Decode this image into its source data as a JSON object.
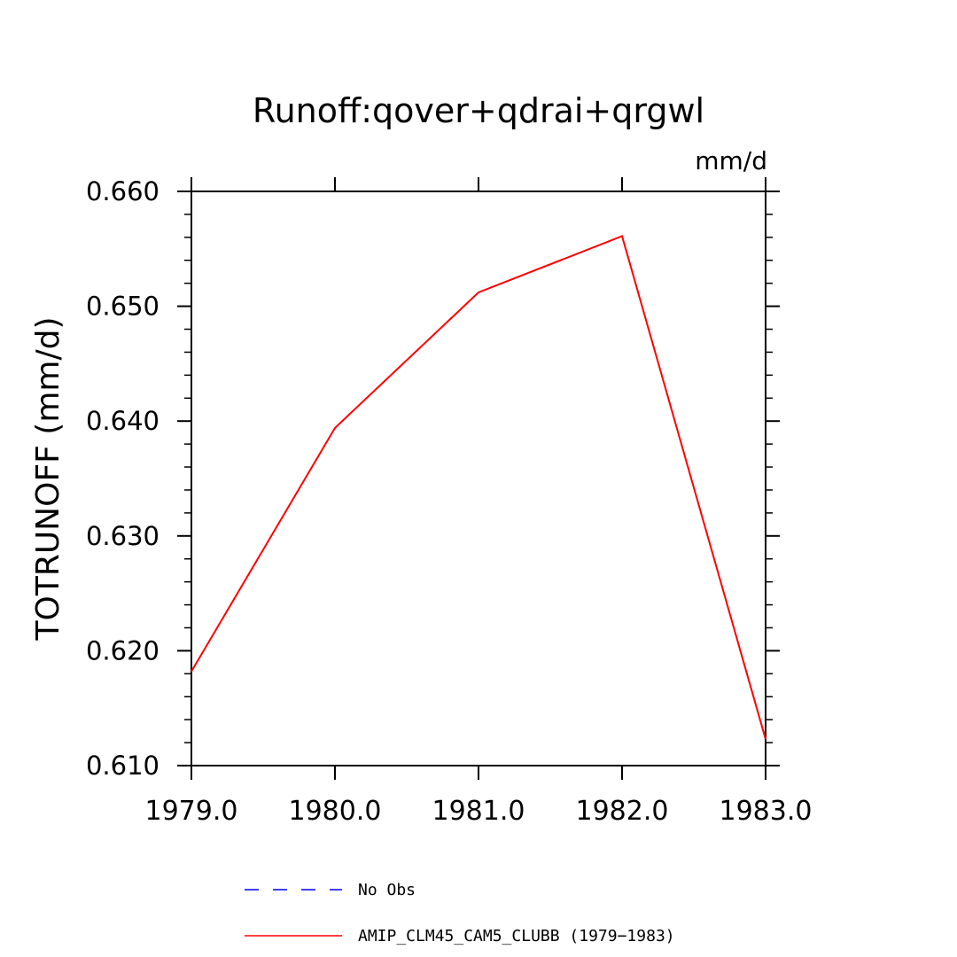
{
  "chart_data": {
    "type": "line",
    "title": "Runoff:qover+qdrai+qrgwl",
    "units": "mm/d",
    "xlabel": "",
    "ylabel": "TOTRUNOFF  (mm/d)",
    "xlim": [
      1979.0,
      1983.0
    ],
    "ylim": [
      0.61,
      0.66
    ],
    "x_ticks": [
      "1979.0",
      "1980.0",
      "1981.0",
      "1982.0",
      "1983.0"
    ],
    "y_ticks": [
      "0.610",
      "0.620",
      "0.630",
      "0.640",
      "0.650",
      "0.660"
    ],
    "grid": false,
    "legend_position": "bottom",
    "series": [
      {
        "name": "AMIP_CLM45_CAM5_CLUBB (1979-1983)",
        "color": "#ff0000",
        "style": "solid",
        "x": [
          1979.0,
          1980.0,
          1981.0,
          1982.0,
          1983.0
        ],
        "y": [
          0.6182,
          0.6394,
          0.6512,
          0.6561,
          0.6123
        ]
      }
    ],
    "legend": [
      {
        "label": "No Obs",
        "color": "#0000ff",
        "style": "dashed"
      },
      {
        "label": "AMIP_CLM45_CAM5_CLUBB (1979−1983)",
        "color": "#ff0000",
        "style": "solid"
      }
    ]
  }
}
